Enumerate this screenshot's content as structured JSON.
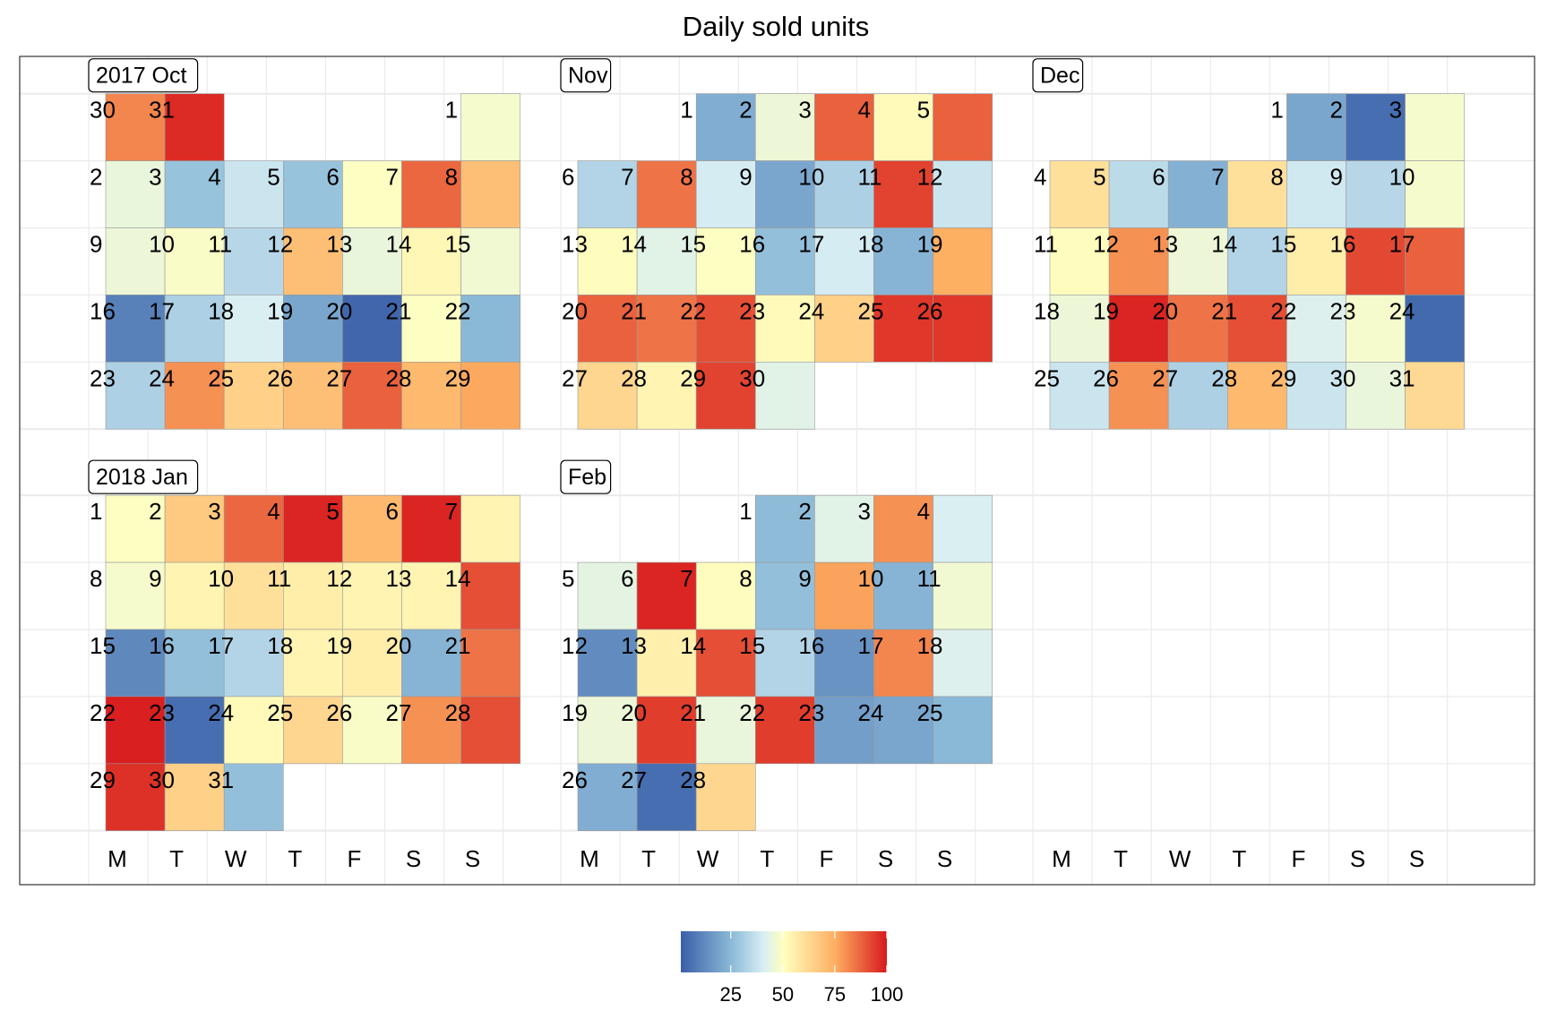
{
  "chart_data": {
    "type": "heatmap",
    "title": "Daily sold units",
    "weekday_labels": [
      "M",
      "T",
      "W",
      "T",
      "F",
      "S",
      "S"
    ],
    "colorbar": {
      "range": [
        1,
        100
      ],
      "ticks": [
        25,
        50,
        75,
        100
      ],
      "tick_labels": [
        "25",
        "50",
        "75",
        "100"
      ],
      "palette": [
        "#3a5fa8",
        "#8dbbd8",
        "#d8eef4",
        "#ffffbf",
        "#fdae61",
        "#d7191c"
      ]
    },
    "months": [
      {
        "label": "2017 Oct",
        "first_weekday": 6,
        "days": 31,
        "values": [
          48,
          45,
          28,
          38,
          28,
          50,
          87,
          70,
          46,
          49,
          34,
          70,
          45,
          53,
          47,
          10,
          32,
          41,
          20,
          3,
          50,
          25,
          32,
          80,
          65,
          70,
          88,
          72,
          76,
          82,
          97
        ]
      },
      {
        "label": "Nov",
        "first_weekday": 2,
        "days": 30,
        "values": [
          22,
          46,
          88,
          52,
          88,
          33,
          85,
          40,
          20,
          32,
          93,
          38,
          51,
          43,
          50,
          27,
          40,
          24,
          75,
          88,
          85,
          91,
          52,
          65,
          95,
          95,
          63,
          54,
          93,
          43
        ]
      },
      {
        "label": "Dec",
        "first_weekday": 4,
        "days": 31,
        "values": [
          20,
          5,
          48,
          60,
          35,
          23,
          60,
          39,
          34,
          48,
          51,
          80,
          46,
          33,
          56,
          92,
          88,
          46,
          98,
          85,
          91,
          42,
          48,
          4,
          38,
          80,
          32,
          72,
          38,
          45,
          62
        ]
      },
      {
        "label": "2018 Jan",
        "first_weekday": 0,
        "days": 31,
        "values": [
          50,
          67,
          87,
          98,
          72,
          98,
          54,
          48,
          54,
          60,
          56,
          54,
          54,
          91,
          12,
          27,
          33,
          54,
          56,
          24,
          85,
          99,
          5,
          52,
          63,
          49,
          80,
          91,
          96,
          65,
          27
        ]
      },
      {
        "label": "Feb",
        "first_weekday": 3,
        "days": 28,
        "values": [
          26,
          43,
          80,
          41,
          44,
          98,
          51,
          27,
          77,
          24,
          47,
          13,
          55,
          91,
          33,
          15,
          82,
          42,
          46,
          94,
          45,
          94,
          18,
          20,
          25,
          22,
          5,
          63
        ]
      }
    ]
  }
}
